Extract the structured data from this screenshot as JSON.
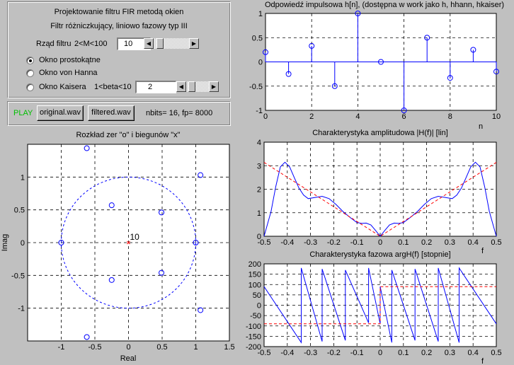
{
  "controls": {
    "title": "Projektowanie filtru FIR metodą okien",
    "subtitle": "Filtr różniczkujący, liniowo fazowy typ III",
    "order_label": "Rząd filtru",
    "order_range": "2<M<100",
    "order_value": "10",
    "window_rect": "Okno prostokątne",
    "window_hann": "Okno von Hanna",
    "window_kaiser": "Okno Kaisera",
    "beta_range": "1<beta<10",
    "beta_value": "2",
    "order_slider_level": 0.08,
    "beta_slider_level": 0.11
  },
  "play": {
    "play_label": "PLAY",
    "original_btn": "original.wav",
    "filtered_btn": "filtered.wav",
    "info": "nbits= 16,  fp= 8000"
  },
  "colors": {
    "background": "#c0c0c0",
    "signal": "#0000ff",
    "reference": "#ff0000",
    "play": "#00c000"
  },
  "chart_data": [
    {
      "type": "scatter",
      "title": "Odpowiedź impulsowa h[n], (dostępna w work jako h, hhann, hkaiser)",
      "xlabel": "n",
      "ylabel": "",
      "xlim": [
        0,
        10
      ],
      "ylim": [
        -1,
        1
      ],
      "xticks": [
        "0",
        "2",
        "4",
        "6",
        "8",
        "10"
      ],
      "yticks": [
        "-1",
        "-0.5",
        "0",
        "0.5",
        "1"
      ],
      "grid": true,
      "x": [
        0,
        1,
        2,
        3,
        4,
        5,
        6,
        7,
        8,
        9,
        10
      ],
      "values": [
        0.2,
        -0.25,
        0.33,
        -0.5,
        1,
        0,
        -1,
        0.5,
        -0.33,
        0.25,
        -0.2
      ]
    },
    {
      "type": "scatter",
      "title": "Rozkład zer \"o\" i biegunów \"x\"",
      "xlabel": "Real",
      "ylabel": "Imag",
      "xlim": [
        -1.5,
        1.5
      ],
      "ylim": [
        -1.5,
        1.5
      ],
      "xticks": [
        "-1",
        "-0.5",
        "0",
        "0.5",
        "1",
        "1.5"
      ],
      "yticks": [
        "-1",
        "-0.5",
        "0",
        "0.5",
        "1"
      ],
      "grid": true,
      "annotation": "10",
      "zeros": [
        [
          -1,
          0
        ],
        [
          1,
          0
        ],
        [
          -0.62,
          1.44
        ],
        [
          -0.62,
          -1.44
        ],
        [
          1.07,
          1.03
        ],
        [
          1.07,
          -1.03
        ],
        [
          -0.25,
          0.57
        ],
        [
          -0.25,
          -0.57
        ],
        [
          0.49,
          0.46
        ],
        [
          0.49,
          -0.46
        ]
      ],
      "poles": [
        [
          0,
          0
        ]
      ]
    },
    {
      "type": "line",
      "title": "Charakterystyka amplitudowa |H(f)| [lin]",
      "xlabel": "f",
      "ylabel": "",
      "xlim": [
        -0.5,
        0.5
      ],
      "ylim": [
        0,
        4
      ],
      "xticks": [
        "-0.5",
        "-0.4",
        "-0.3",
        "-0.2",
        "-0.1",
        "0",
        "0.1",
        "0.2",
        "0.3",
        "0.4",
        "0.5"
      ],
      "yticks": [
        "0",
        "1",
        "2",
        "3",
        "4"
      ],
      "grid": true,
      "series": [
        {
          "x": [
            -0.5,
            -0.47,
            -0.45,
            -0.43,
            -0.41,
            -0.39,
            -0.37,
            -0.35,
            -0.33,
            -0.31,
            -0.28,
            -0.25,
            -0.22,
            -0.19,
            -0.16,
            -0.13,
            -0.1,
            -0.08,
            -0.06,
            -0.04,
            -0.02,
            0,
            0.02,
            0.04,
            0.06,
            0.08,
            0.1,
            0.13,
            0.16,
            0.19,
            0.22,
            0.25,
            0.28,
            0.31,
            0.33,
            0.35,
            0.37,
            0.39,
            0.41,
            0.43,
            0.45,
            0.47,
            0.5
          ],
          "values": [
            0,
            1.05,
            2.1,
            2.95,
            3.15,
            2.95,
            2.5,
            2.05,
            1.75,
            1.6,
            1.65,
            1.7,
            1.6,
            1.35,
            1.05,
            0.8,
            0.58,
            0.55,
            0.56,
            0.48,
            0.25,
            0,
            0.25,
            0.48,
            0.56,
            0.55,
            0.58,
            0.8,
            1.05,
            1.35,
            1.6,
            1.7,
            1.65,
            1.6,
            1.75,
            2.05,
            2.5,
            2.95,
            3.15,
            2.95,
            2.1,
            1.05,
            0
          ]
        },
        {
          "x": [
            -0.5,
            0,
            0.5
          ],
          "values": [
            3.14,
            0,
            3.14
          ]
        }
      ]
    },
    {
      "type": "line",
      "title": "Charakterystyka fazowa argH(f) [stopnie]",
      "xlabel": "f",
      "ylabel": "",
      "xlim": [
        -0.5,
        0.5
      ],
      "ylim": [
        -200,
        200
      ],
      "xticks": [
        "-0.5",
        "-0.4",
        "-0.3",
        "-0.2",
        "-0.1",
        "0",
        "0.1",
        "0.2",
        "0.3",
        "0.4",
        "0.5"
      ],
      "yticks": [
        "-200",
        "-150",
        "-100",
        "-50",
        "0",
        "50",
        "100",
        "150",
        "200"
      ],
      "grid": true,
      "series": [
        {
          "x": [
            -0.5,
            -0.34,
            -0.34,
            -0.25,
            -0.25,
            -0.15,
            -0.15,
            -0.05,
            -0.05,
            0,
            0,
            0.05,
            0.05,
            0.15,
            0.15,
            0.25,
            0.25,
            0.34,
            0.34,
            0.5
          ],
          "values": [
            90,
            -180,
            180,
            -175,
            175,
            -170,
            170,
            -85,
            180,
            -90,
            90,
            -180,
            170,
            -170,
            175,
            -175,
            180,
            -180,
            180,
            -90
          ]
        },
        {
          "x": [
            -0.5,
            0,
            0,
            0.5
          ],
          "values": [
            -90,
            -90,
            90,
            90
          ]
        }
      ]
    }
  ]
}
